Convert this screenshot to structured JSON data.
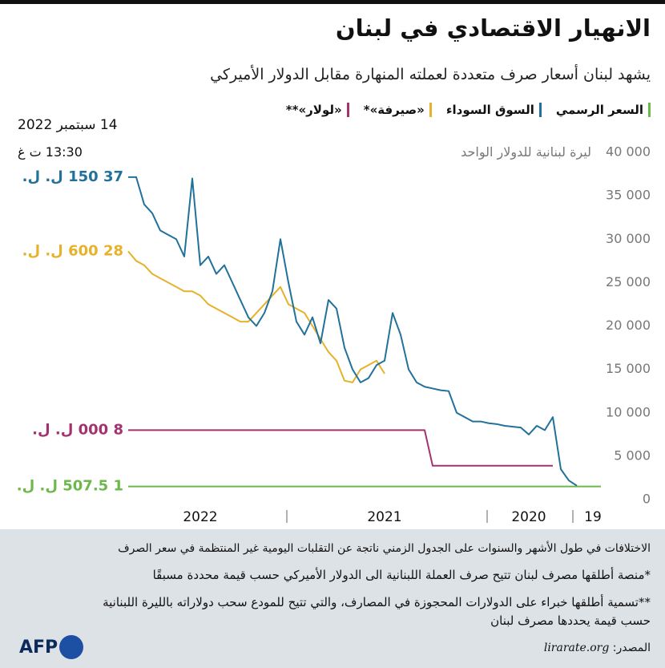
{
  "chart_data": {
    "type": "line",
    "title": "الانهيار الاقتصادي في لبنان",
    "subtitle": "يشهد لبنان أسعار صرف متعددة لعملته المنهارة مقابل الدولار الأميركي",
    "date": "14 سبتمبر 2022",
    "time": "13:30 ت غ",
    "y_label": "ليرة لبنانية للدولار الواحد",
    "categories": [
      null,
      "19",
      null,
      null,
      null,
      null,
      null,
      null,
      null,
      "2020",
      null,
      null,
      null,
      null,
      null,
      null,
      null,
      null,
      null,
      null,
      null,
      null,
      null,
      null,
      null,
      null,
      null,
      "2021",
      null,
      null,
      null,
      null,
      null,
      null,
      null,
      null,
      null,
      null,
      null,
      null,
      null,
      null,
      null,
      null,
      null,
      null,
      null,
      null,
      null,
      null,
      "2022",
      null,
      null,
      null,
      null,
      null,
      null,
      null,
      null,
      null
    ],
    "ylim": [
      0,
      40000
    ],
    "yticks": [
      0,
      {
        "value": 5000,
        "label": "5 000"
      },
      {
        "value": 10000,
        "label": "10 000"
      },
      {
        "value": 15000,
        "label": "15 000"
      },
      {
        "value": 20000,
        "label": "20 000"
      },
      {
        "value": 25000,
        "label": "25 000"
      },
      {
        "value": 30000,
        "label": "30 000"
      },
      {
        "value": 35000,
        "label": "35 000"
      },
      {
        "value": 40000,
        "label": "40 000"
      }
    ],
    "series": [
      {
        "name": "السعر الرسمي",
        "color": "#6cb84a",
        "values": [
          1507.5,
          1507.5,
          1507.5,
          1507.5,
          1507.5,
          1507.5,
          1507.5,
          1507.5,
          1507.5,
          1507.5,
          1507.5,
          1507.5,
          1507.5,
          1507.5,
          1507.5,
          1507.5,
          1507.5,
          1507.5,
          1507.5,
          1507.5,
          1507.5,
          1507.5,
          1507.5,
          1507.5,
          1507.5,
          1507.5,
          1507.5,
          1507.5,
          1507.5,
          1507.5,
          1507.5,
          1507.5,
          1507.5,
          1507.5,
          1507.5,
          1507.5,
          1507.5,
          1507.5,
          1507.5,
          1507.5,
          1507.5,
          1507.5,
          1507.5,
          1507.5,
          1507.5,
          1507.5,
          1507.5,
          1507.5,
          1507.5,
          1507.5,
          1507.5,
          1507.5,
          1507.5,
          1507.5,
          1507.5,
          1507.5,
          1507.5,
          1507.5,
          1507.5,
          1507.5
        ],
        "value_labels": [
          null,
          null,
          null,
          null,
          null,
          null,
          null,
          null,
          null,
          null,
          null,
          null,
          null,
          null,
          null,
          null,
          null,
          null,
          null,
          null,
          null,
          null,
          null,
          null,
          null,
          null,
          null,
          null,
          null,
          null,
          null,
          null,
          null,
          null,
          null,
          null,
          null,
          null,
          null,
          null,
          null,
          null,
          null,
          null,
          null,
          null,
          null,
          null,
          null,
          null,
          null,
          null,
          null,
          null,
          null,
          null,
          null,
          null,
          null,
          "1 507.5 ل. ل."
        ]
      },
      {
        "name": "«لولار»**",
        "color": "#a2336f",
        "values": [
          null,
          null,
          null,
          null,
          null,
          null,
          3900,
          3900,
          3900,
          3900,
          3900,
          3900,
          3900,
          3900,
          3900,
          3900,
          3900,
          3900,
          3900,
          3900,
          3900,
          3900,
          8000,
          8000,
          8000,
          8000,
          8000,
          8000,
          8000,
          8000,
          8000,
          8000,
          8000,
          8000,
          8000,
          8000,
          8000,
          8000,
          8000,
          8000,
          8000,
          8000,
          8000,
          8000,
          8000,
          8000,
          8000,
          8000,
          8000,
          8000,
          8000,
          8000,
          8000,
          8000,
          8000,
          8000,
          8000,
          8000,
          8000,
          8000
        ],
        "value_labels": [
          null,
          null,
          null,
          null,
          null,
          null,
          null,
          null,
          null,
          null,
          null,
          null,
          null,
          null,
          null,
          null,
          null,
          null,
          null,
          null,
          null,
          null,
          null,
          null,
          null,
          null,
          null,
          null,
          null,
          null,
          null,
          null,
          null,
          null,
          null,
          null,
          null,
          null,
          null,
          null,
          null,
          null,
          null,
          null,
          null,
          null,
          null,
          null,
          null,
          null,
          null,
          null,
          null,
          null,
          null,
          null,
          null,
          null,
          null,
          "8 000 ل. ل."
        ]
      },
      {
        "name": "«صيرفة»*",
        "color": "#e6b22a",
        "values": [
          null,
          null,
          null,
          null,
          null,
          null,
          null,
          null,
          null,
          null,
          null,
          null,
          null,
          null,
          null,
          null,
          null,
          null,
          null,
          null,
          null,
          null,
          null,
          null,
          null,
          null,
          null,
          14500,
          16000,
          15500,
          15000,
          13500,
          13700,
          16000,
          17000,
          18500,
          20000,
          21500,
          22000,
          22500,
          24500,
          23500,
          22500,
          21500,
          20500,
          20500,
          21000,
          21500,
          22000,
          22500,
          23500,
          24000,
          24000,
          24500,
          25000,
          25500,
          26000,
          27000,
          27500,
          28600
        ],
        "value_labels": [
          null,
          null,
          null,
          null,
          null,
          null,
          null,
          null,
          null,
          null,
          null,
          null,
          null,
          null,
          null,
          null,
          null,
          null,
          null,
          null,
          null,
          null,
          null,
          null,
          null,
          null,
          null,
          null,
          null,
          null,
          null,
          null,
          null,
          null,
          null,
          null,
          null,
          null,
          null,
          null,
          null,
          null,
          null,
          null,
          null,
          null,
          null,
          null,
          null,
          null,
          null,
          null,
          null,
          null,
          null,
          null,
          null,
          null,
          null,
          "28 600 ل. ل."
        ]
      },
      {
        "name": "السوق السوداء",
        "color": "#21719b",
        "values": [
          null,
          null,
          null,
          1600,
          2200,
          3500,
          9500,
          8000,
          8500,
          7500,
          8300,
          8400,
          8500,
          8700,
          8800,
          9000,
          9000,
          9500,
          10000,
          12500,
          12600,
          12800,
          13000,
          13500,
          15000,
          19000,
          21500,
          16000,
          15500,
          14000,
          13500,
          15000,
          17500,
          22000,
          23000,
          18000,
          21000,
          19000,
          20500,
          25000,
          30000,
          24000,
          21500,
          20000,
          21000,
          23000,
          25000,
          27000,
          26000,
          28000,
          27000,
          37000,
          28000,
          30000,
          30500,
          31000,
          33000,
          34000,
          37150,
          37150
        ],
        "value_labels": [
          null,
          null,
          null,
          null,
          null,
          null,
          null,
          null,
          null,
          null,
          null,
          null,
          null,
          null,
          null,
          null,
          null,
          null,
          null,
          null,
          null,
          null,
          null,
          null,
          null,
          null,
          null,
          null,
          null,
          null,
          null,
          null,
          null,
          null,
          null,
          null,
          null,
          null,
          null,
          null,
          null,
          null,
          null,
          null,
          null,
          null,
          null,
          null,
          null,
          null,
          null,
          null,
          null,
          null,
          null,
          null,
          null,
          null,
          null,
          "37 150 ل. ل."
        ]
      }
    ],
    "legend_order": [
      0,
      3,
      2,
      1
    ],
    "notes": [
      "الاختلافات في طول الأشهر والسنوات على الجدول الزمني ناتجة عن التقلبات اليومية غير المنتظمة في سعر الصرف",
      "*منصة أطلقها مصرف لبنان تتيح صرف العملة اللبنانية الى الدولار الأميركي حسب قيمة محددة مسبقًا",
      "**تسمية أطلقها خبراء على الدولارات المحجوزة في المصارف، والتي تتيح للمودع سحب دولاراته بالليرة اللبنانية حسب قيمة يحددها مصرف لبنان"
    ],
    "source_label": "المصدر:",
    "source": "lirarate.org",
    "logo": "AFP"
  }
}
